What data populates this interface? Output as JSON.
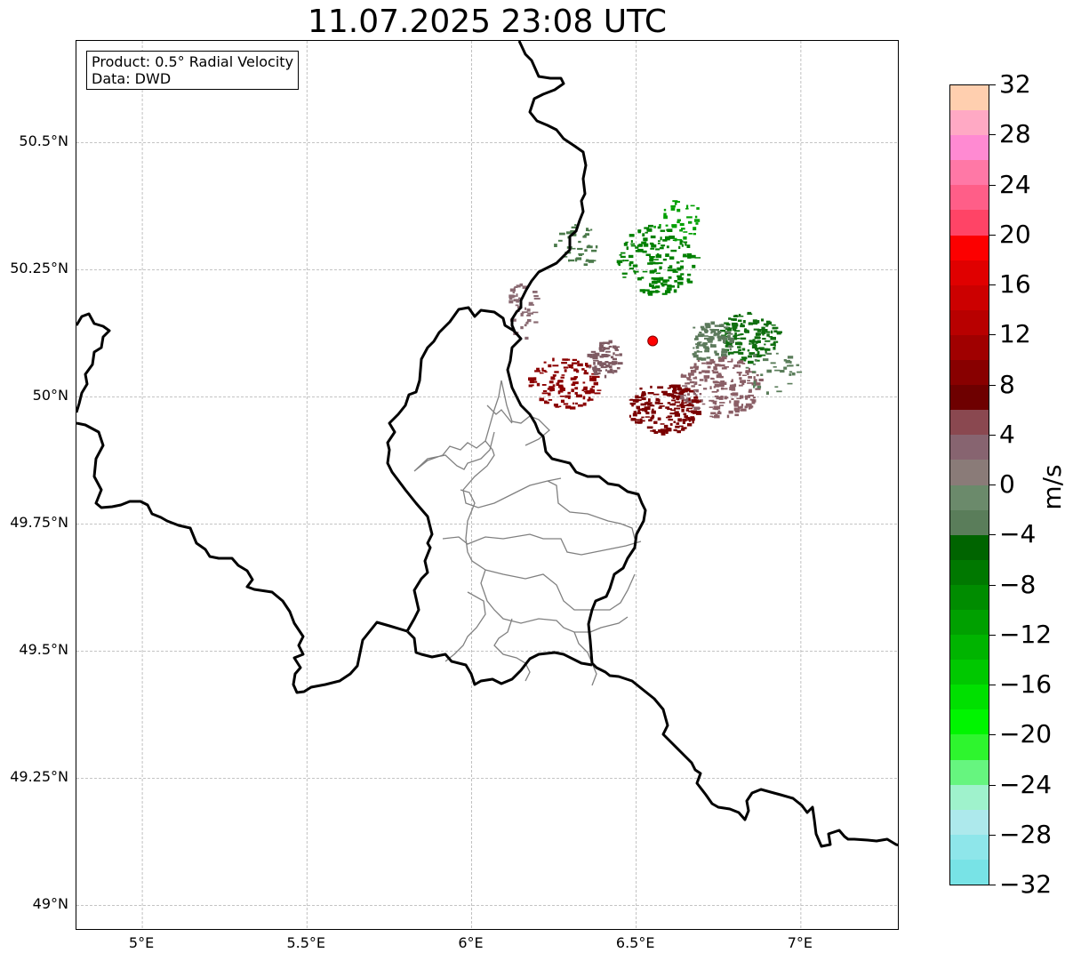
{
  "title": "11.07.2025 23:08 UTC",
  "info": {
    "product": "Product: 0.5° Radial Velocity",
    "data": "Data: DWD"
  },
  "lat_ticks": [
    {
      "value": 50.5,
      "label": "50.5°N"
    },
    {
      "value": 50.25,
      "label": "50.25°N"
    },
    {
      "value": 50.0,
      "label": "50°N"
    },
    {
      "value": 49.75,
      "label": "49.75°N"
    },
    {
      "value": 49.5,
      "label": "49.5°N"
    },
    {
      "value": 49.25,
      "label": "49.25°N"
    },
    {
      "value": 49.0,
      "label": "49°N"
    }
  ],
  "lon_ticks": [
    {
      "value": 5.0,
      "label": "5°E"
    },
    {
      "value": 5.5,
      "label": "5.5°E"
    },
    {
      "value": 6.0,
      "label": "6°E"
    },
    {
      "value": 6.5,
      "label": "6.5°E"
    },
    {
      "value": 7.0,
      "label": "7°E"
    }
  ],
  "extent": {
    "lon_min": 4.8,
    "lon_max": 7.3,
    "lat_min": 48.95,
    "lat_max": 50.7
  },
  "radar_site": {
    "lon": 6.55,
    "lat": 50.11
  },
  "colorbar": {
    "unit": "m/s",
    "min": -32,
    "max": 32,
    "tick_labels": [
      "32",
      "28",
      "24",
      "20",
      "16",
      "12",
      "8",
      "4",
      "0",
      "−4",
      "−8",
      "−12",
      "−16",
      "−20",
      "−24",
      "−28",
      "−32"
    ],
    "colors_top_to_bottom": [
      "#ffcfaf",
      "#ffa9c4",
      "#ff8ad2",
      "#ff78a6",
      "#ff5e88",
      "#ff4466",
      "#fc0000",
      "#e00000",
      "#cc0000",
      "#b80000",
      "#a00000",
      "#880000",
      "#6e0000",
      "#8a4850",
      "#876470",
      "#8a7b78",
      "#6b8a6b",
      "#5a7d5a",
      "#006400",
      "#007800",
      "#008c00",
      "#00a000",
      "#00b400",
      "#00c800",
      "#00e000",
      "#00f500",
      "#2ef52e",
      "#66f57f",
      "#9ff2cc",
      "#ade9ec",
      "#8ee6ea",
      "#78e3e6"
    ]
  },
  "velocity_clusters": [
    {
      "lon": 6.56,
      "lat": 50.27,
      "rx": 0.12,
      "ry": 0.07,
      "n": 160,
      "color": "#008000"
    },
    {
      "lon": 6.84,
      "lat": 50.12,
      "rx": 0.09,
      "ry": 0.05,
      "n": 140,
      "color": "#0f6e0f"
    },
    {
      "lon": 6.72,
      "lat": 50.11,
      "rx": 0.07,
      "ry": 0.04,
      "n": 90,
      "color": "#5c7a5c"
    },
    {
      "lon": 6.75,
      "lat": 50.02,
      "rx": 0.13,
      "ry": 0.06,
      "n": 200,
      "color": "#8a5f66"
    },
    {
      "lon": 6.58,
      "lat": 49.98,
      "rx": 0.11,
      "ry": 0.05,
      "n": 180,
      "color": "#7a0000"
    },
    {
      "lon": 6.28,
      "lat": 50.03,
      "rx": 0.11,
      "ry": 0.05,
      "n": 120,
      "color": "#8b0000"
    },
    {
      "lon": 6.4,
      "lat": 50.08,
      "rx": 0.05,
      "ry": 0.04,
      "n": 70,
      "color": "#7e5a62"
    },
    {
      "lon": 6.15,
      "lat": 50.17,
      "rx": 0.05,
      "ry": 0.06,
      "n": 40,
      "color": "#8a6a72"
    },
    {
      "lon": 6.32,
      "lat": 50.3,
      "rx": 0.07,
      "ry": 0.04,
      "n": 40,
      "color": "#4b7a4b"
    },
    {
      "lon": 6.9,
      "lat": 50.05,
      "rx": 0.09,
      "ry": 0.05,
      "n": 35,
      "color": "#5a7d5a"
    },
    {
      "lon": 6.62,
      "lat": 50.35,
      "rx": 0.08,
      "ry": 0.04,
      "n": 35,
      "color": "#00a000"
    }
  ]
}
